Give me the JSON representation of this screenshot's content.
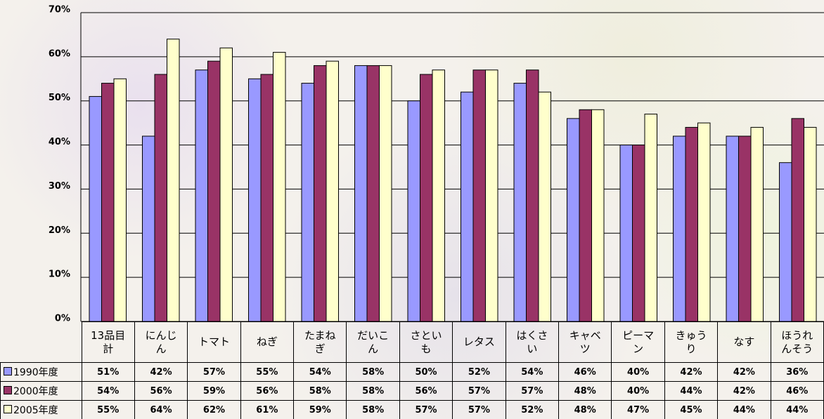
{
  "chart_data": {
    "type": "bar",
    "categories": [
      "13品目計",
      "にんじん",
      "トマト",
      "ねぎ",
      "たまねぎ",
      "だいこん",
      "さといも",
      "レタス",
      "はくさい",
      "キャベツ",
      "ピーマン",
      "きゅうり",
      "なす",
      "ほうれんそう"
    ],
    "series": [
      {
        "name": "1990年度",
        "color": "#9999ff",
        "values": [
          51,
          42,
          57,
          55,
          54,
          58,
          50,
          52,
          54,
          46,
          40,
          42,
          42,
          36
        ],
        "value_labels": [
          "51%",
          "42%",
          "57%",
          "55%",
          "54%",
          "58%",
          "50%",
          "52%",
          "54%",
          "46%",
          "40%",
          "42%",
          "42%",
          "36%"
        ]
      },
      {
        "name": "2000年度",
        "color": "#993366",
        "values": [
          54,
          56,
          59,
          56,
          58,
          58,
          56,
          57,
          57,
          48,
          40,
          44,
          42,
          46
        ],
        "value_labels": [
          "54%",
          "56%",
          "59%",
          "56%",
          "58%",
          "58%",
          "56%",
          "57%",
          "57%",
          "48%",
          "40%",
          "44%",
          "42%",
          "46%"
        ]
      },
      {
        "name": "2005年度",
        "color": "#ffffcc",
        "values": [
          55,
          64,
          62,
          61,
          59,
          58,
          57,
          57,
          52,
          48,
          47,
          45,
          44,
          44
        ],
        "value_labels": [
          "55%",
          "64%",
          "62%",
          "61%",
          "59%",
          "58%",
          "57%",
          "57%",
          "52%",
          "48%",
          "47%",
          "45%",
          "44%",
          "44%"
        ]
      }
    ],
    "ylim": [
      0,
      70
    ],
    "yticks": [
      {
        "value": 0,
        "label": "0%"
      },
      {
        "value": 10,
        "label": "10%"
      },
      {
        "value": 20,
        "label": "20%"
      },
      {
        "value": 30,
        "label": "30%"
      },
      {
        "value": 40,
        "label": "40%"
      },
      {
        "value": 50,
        "label": "50%"
      },
      {
        "value": 60,
        "label": "60%"
      },
      {
        "value": 70,
        "label": "70%"
      }
    ],
    "grid": true
  }
}
